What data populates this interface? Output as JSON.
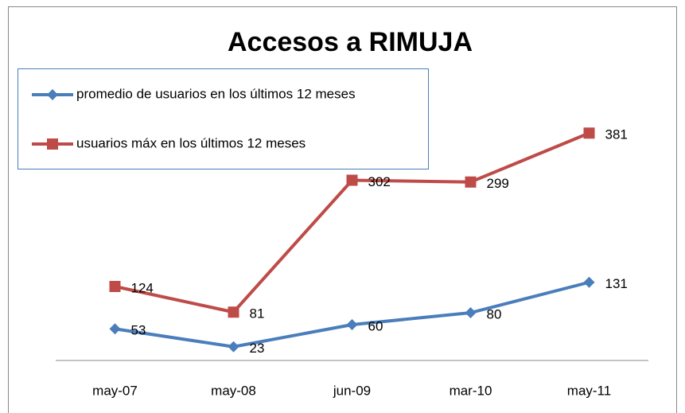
{
  "chart_data": {
    "type": "line",
    "title": "Accesos a RIMUJA",
    "categories": [
      "may-07",
      "may-08",
      "jun-09",
      "mar-10",
      "may-11"
    ],
    "series": [
      {
        "name": "promedio de usuarios en los últimos 12 meses",
        "color": "#4a7ebb",
        "marker": "diamond",
        "values": [
          53,
          23,
          60,
          80,
          131
        ]
      },
      {
        "name": "usuarios máx en los últimos 12 meses",
        "color": "#be4b48",
        "marker": "square",
        "values": [
          124,
          81,
          302,
          299,
          381
        ]
      }
    ],
    "ylim": [
      0,
      400
    ],
    "legend": "top-left",
    "data_labels": true
  }
}
